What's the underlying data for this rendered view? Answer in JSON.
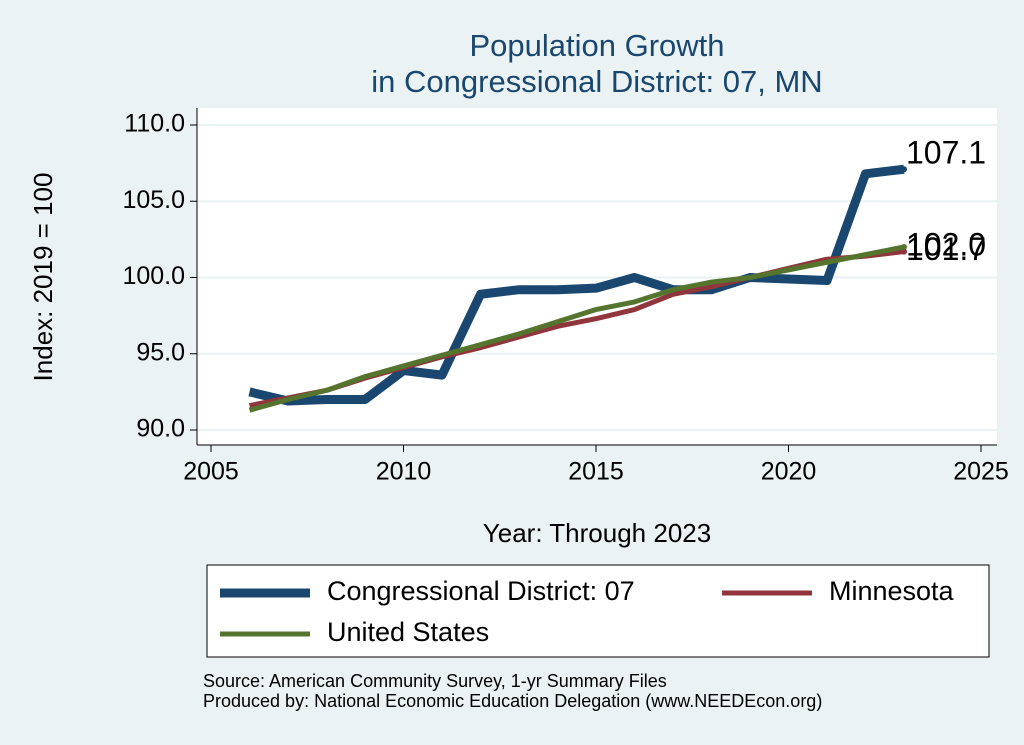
{
  "chart_data": {
    "type": "line",
    "title": [
      "Population Growth",
      "in Congressional District: 07, MN"
    ],
    "x_label": "Year: Through 2023",
    "y_label": "Index: 2019 = 100",
    "x": [
      2006,
      2007,
      2008,
      2009,
      2010,
      2011,
      2012,
      2013,
      2014,
      2015,
      2016,
      2017,
      2018,
      2019,
      2020,
      2021,
      2022,
      2023
    ],
    "series": [
      {
        "name": "Congressional District: 07",
        "color": "#1a476f",
        "values": [
          92.5,
          91.9,
          92.0,
          92.0,
          93.9,
          93.6,
          98.9,
          99.2,
          99.2,
          99.3,
          100.0,
          99.2,
          99.2,
          100.0,
          99.9,
          99.8,
          106.8,
          107.1
        ],
        "value_labels": [
          null,
          null,
          null,
          null,
          null,
          null,
          null,
          null,
          null,
          null,
          null,
          null,
          null,
          null,
          null,
          null,
          null,
          "107.1"
        ]
      },
      {
        "name": "Minnesota",
        "color": "#90353b",
        "values": [
          91.6,
          92.1,
          92.6,
          93.4,
          94.1,
          94.8,
          95.4,
          96.1,
          96.8,
          97.3,
          97.9,
          98.9,
          99.4,
          100.0,
          100.6,
          101.2,
          101.4,
          101.7
        ],
        "value_labels": [
          null,
          null,
          null,
          null,
          null,
          null,
          null,
          null,
          null,
          null,
          null,
          null,
          null,
          null,
          null,
          null,
          null,
          "101.7"
        ]
      },
      {
        "name": "United States",
        "color": "#55752f",
        "values": [
          91.3,
          92.0,
          92.6,
          93.5,
          94.2,
          94.9,
          95.6,
          96.3,
          97.1,
          97.9,
          98.4,
          99.2,
          99.7,
          100.0,
          100.5,
          101.0,
          101.5,
          102.0
        ],
        "value_labels": [
          null,
          null,
          null,
          null,
          null,
          null,
          null,
          null,
          null,
          null,
          null,
          null,
          null,
          null,
          null,
          null,
          null,
          "102.0"
        ]
      }
    ],
    "xlim": [
      2005,
      2025
    ],
    "xticks": [
      2005,
      2010,
      2015,
      2020,
      2025
    ],
    "ylim": [
      90,
      110
    ],
    "yticks": [
      {
        "value": 90,
        "label": "90.0"
      },
      {
        "value": 95,
        "label": "95.0"
      },
      {
        "value": 100,
        "label": "100.0"
      },
      {
        "value": 105,
        "label": "105.0"
      },
      {
        "value": 110,
        "label": "110.0"
      }
    ],
    "grid": true,
    "notes": [
      "Source: American Community Survey, 1-yr Summary Files",
      "Produced by: National Economic Education Delegation (www.NEEDEcon.org)"
    ]
  }
}
